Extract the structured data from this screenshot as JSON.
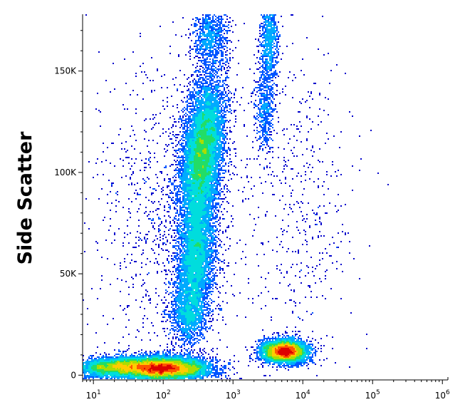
{
  "chart_data": {
    "type": "scatter",
    "title": "",
    "xlabel": "",
    "ylabel": "Side Scatter",
    "xscale": "log",
    "xlim": [
      7,
      1200000
    ],
    "ylim": [
      -2000,
      178000
    ],
    "grid": false,
    "legend": "none",
    "x_ticks": [
      {
        "value": 10,
        "base": "10",
        "exp": "1"
      },
      {
        "value": 100,
        "base": "10",
        "exp": "2"
      },
      {
        "value": 1000,
        "base": "10",
        "exp": "3"
      },
      {
        "value": 10000,
        "base": "10",
        "exp": "4"
      },
      {
        "value": 100000,
        "base": "10",
        "exp": "5"
      },
      {
        "value": 1000000,
        "base": "10",
        "exp": "6"
      }
    ],
    "y_ticks": [
      {
        "value": 0,
        "label": "0"
      },
      {
        "value": 50000,
        "label": "50K"
      },
      {
        "value": 100000,
        "label": "100K"
      },
      {
        "value": 150000,
        "label": "150K"
      }
    ],
    "density_colors": [
      "#0000cc",
      "#0055ff",
      "#00aaff",
      "#00dddd",
      "#22dd66",
      "#aadd00",
      "#ffcc00",
      "#ff5500",
      "#dd0000"
    ],
    "populations": [
      {
        "center_x": 150,
        "center_y": 4000,
        "relative_density": 1.0
      },
      {
        "center_x": 350,
        "center_y": 115000,
        "relative_density": 0.45
      },
      {
        "center_x": 300,
        "center_y": 45000,
        "relative_density": 0.35
      },
      {
        "center_x": 6000,
        "center_y": 12000,
        "relative_density": 0.9
      },
      {
        "center_x": 4000,
        "center_y": 150000,
        "relative_density": 0.3
      }
    ]
  }
}
